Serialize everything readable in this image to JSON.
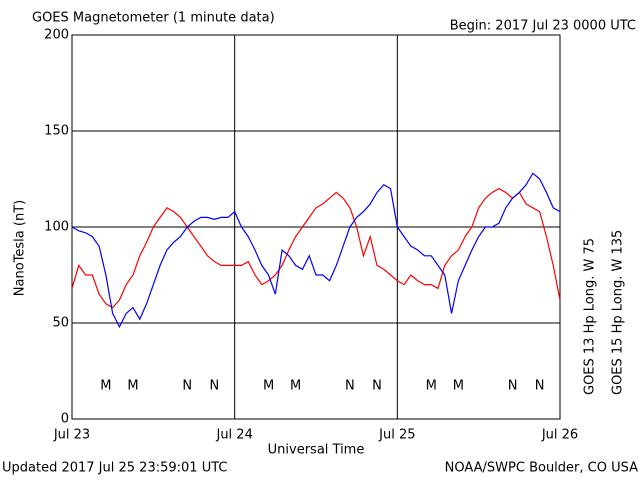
{
  "chart_data": {
    "type": "line",
    "title": "GOES Magnetometer (1 minute data)",
    "subtitle": "Begin:  2017 Jul 23 0000 UTC",
    "y_label": "NanoTesla (nT)",
    "x_label": "Universal Time",
    "footer_left": "Updated 2017 Jul 25 23:59:01 UTC",
    "footer_right": "NOAA/SWPC Boulder, CO USA",
    "x": [
      0,
      1,
      2,
      3,
      4,
      5,
      6,
      7,
      8,
      9,
      10,
      11,
      12,
      13,
      14,
      15,
      16,
      17,
      18,
      19,
      20,
      21,
      22,
      23,
      24,
      25,
      26,
      27,
      28,
      29,
      30,
      31,
      32,
      33,
      34,
      35,
      36,
      37,
      38,
      39,
      40,
      41,
      42,
      43,
      44,
      45,
      46,
      47,
      48,
      49,
      50,
      51,
      52,
      53,
      54,
      55,
      56,
      57,
      58,
      59,
      60,
      61,
      62,
      63,
      64,
      65,
      66,
      67,
      68,
      69,
      70,
      71,
      72
    ],
    "series": [
      {
        "name": "GOES 13 Hp  Long. W 75",
        "color": "#ff0000",
        "values": [
          68,
          80,
          75,
          75,
          65,
          60,
          58,
          62,
          70,
          75,
          85,
          92,
          100,
          105,
          110,
          108,
          105,
          100,
          95,
          90,
          85,
          82,
          80,
          80,
          80,
          80,
          82,
          75,
          70,
          72,
          75,
          80,
          88,
          95,
          100,
          105,
          110,
          112,
          115,
          118,
          115,
          110,
          100,
          85,
          95,
          80,
          78,
          75,
          72,
          70,
          75,
          72,
          70,
          70,
          68,
          80,
          85,
          88,
          95,
          100,
          110,
          115,
          118,
          120,
          118,
          115,
          118,
          112,
          110,
          108,
          95,
          80,
          62
        ]
      },
      {
        "name": "GOES 15 Hp  Long. W 135",
        "color": "#0000ff",
        "values": [
          100,
          98,
          97,
          95,
          90,
          75,
          55,
          48,
          55,
          58,
          52,
          60,
          70,
          80,
          88,
          92,
          95,
          100,
          103,
          105,
          105,
          104,
          105,
          105,
          108,
          100,
          95,
          88,
          80,
          75,
          65,
          88,
          85,
          80,
          78,
          85,
          75,
          75,
          72,
          80,
          90,
          100,
          105,
          108,
          112,
          118,
          122,
          120,
          100,
          95,
          90,
          88,
          85,
          85,
          80,
          75,
          55,
          72,
          80,
          88,
          95,
          100,
          100,
          102,
          110,
          115,
          118,
          122,
          128,
          125,
          118,
          110,
          108
        ]
      }
    ],
    "annotations": [
      {
        "text": "M",
        "x": 5,
        "series": 0
      },
      {
        "text": "M",
        "x": 9,
        "series": 1
      },
      {
        "text": "N",
        "x": 17,
        "series": 0
      },
      {
        "text": "N",
        "x": 21,
        "series": 1
      },
      {
        "text": "M",
        "x": 29,
        "series": 0
      },
      {
        "text": "M",
        "x": 33,
        "series": 1
      },
      {
        "text": "N",
        "x": 41,
        "series": 0
      },
      {
        "text": "N",
        "x": 45,
        "series": 1
      },
      {
        "text": "M",
        "x": 53,
        "series": 0
      },
      {
        "text": "M",
        "x": 57,
        "series": 1
      },
      {
        "text": "N",
        "x": 65,
        "series": 0
      },
      {
        "text": "N",
        "x": 69,
        "series": 1
      }
    ],
    "xlim": [
      0,
      72
    ],
    "xticks": [
      {
        "value": 0,
        "label": "Jul 23"
      },
      {
        "value": 24,
        "label": "Jul 24"
      },
      {
        "value": 48,
        "label": "Jul 25"
      },
      {
        "value": 72,
        "label": "Jul 26"
      }
    ],
    "ylim": [
      0,
      200
    ],
    "yticks": [
      0,
      50,
      100,
      150,
      200
    ],
    "grid": true
  }
}
